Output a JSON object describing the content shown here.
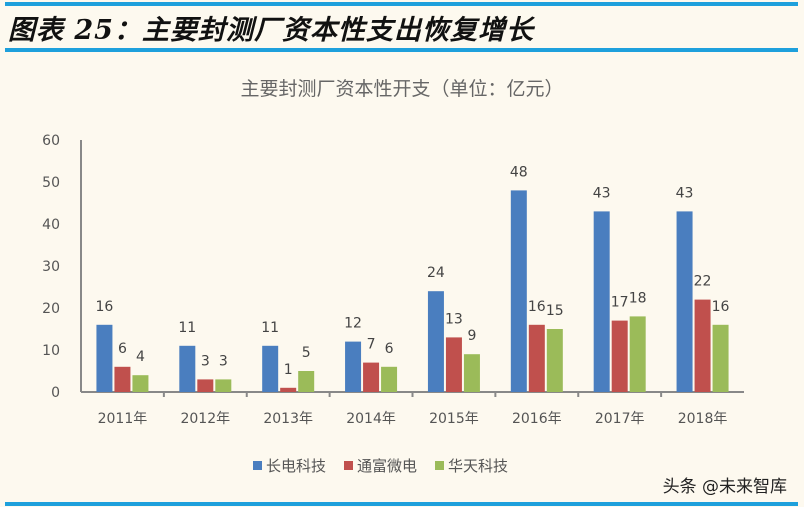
{
  "figure_title": "图表 25：主要封测厂资本性支出恢复增长",
  "watermark": "头条 @未来智库",
  "chart_data": {
    "type": "bar",
    "title": "主要封测厂资本性开支（单位：亿元）",
    "categories": [
      "2011年",
      "2012年",
      "2013年",
      "2014年",
      "2015年",
      "2016年",
      "2017年",
      "2018年"
    ],
    "series": [
      {
        "name": "长电科技",
        "color": "#4a7ebf",
        "values": [
          16,
          11,
          11,
          12,
          24,
          48,
          43,
          43
        ]
      },
      {
        "name": "通富微电",
        "color": "#c0504d",
        "values": [
          6,
          3,
          1,
          7,
          13,
          16,
          17,
          22
        ]
      },
      {
        "name": "华天科技",
        "color": "#9bbb59",
        "values": [
          4,
          3,
          5,
          6,
          9,
          15,
          18,
          16
        ]
      }
    ],
    "ylim": [
      0,
      60
    ],
    "yticks": [
      0,
      10,
      20,
      30,
      40,
      50,
      60
    ],
    "grid": false,
    "data_labels": true,
    "legend": "bottom"
  }
}
